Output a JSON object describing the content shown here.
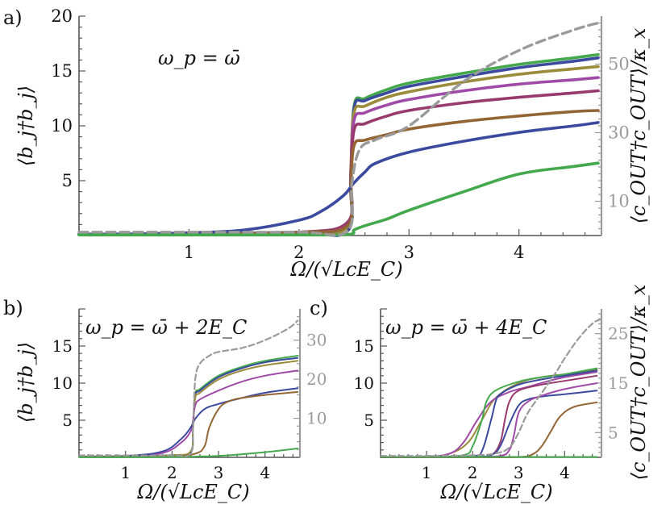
{
  "colors": {
    "green": "#44a84c",
    "blue": "#3b4a9e",
    "olive": "#9a8c3a",
    "purple": "#a04aa8",
    "magenta": "#993a6e",
    "brown": "#936535",
    "gray": "#9a9a9a"
  },
  "chart_data": [
    {
      "panel": "a)",
      "type": "line",
      "annotation": "ω_p = ω̄",
      "xlabel": "Ω/(√LcE_C)",
      "ylabel": "⟨b_j†b_j⟩",
      "ylabel_right": "⟨c_OUT†c_OUT⟩/κ_x",
      "xlim": [
        0,
        4.75
      ],
      "ylim": [
        0,
        20
      ],
      "ylim_right": [
        0,
        64
      ],
      "xticks": [
        "1",
        "2",
        "3",
        "4"
      ],
      "xtick_values": [
        1,
        2,
        3,
        4
      ],
      "yticks": [
        "5",
        "10",
        "15",
        "20"
      ],
      "ytick_values": [
        5,
        10,
        15,
        20
      ],
      "yticks_right": [
        "10",
        "30",
        "50"
      ],
      "ytick_values_right": [
        10,
        30,
        50
      ],
      "series": [
        {
          "name": "green-top",
          "color": "green",
          "x": [
            0,
            1,
            2,
            2.44,
            2.47,
            2.5,
            2.6,
            2.8,
            3.0,
            3.5,
            4.0,
            4.5,
            4.72
          ],
          "y": [
            0.1,
            0.15,
            0.3,
            0.4,
            5,
            11.8,
            12.5,
            13.3,
            13.9,
            14.8,
            15.6,
            16.2,
            16.5
          ]
        },
        {
          "name": "blue-top",
          "color": "blue",
          "x": [
            0,
            1,
            2,
            2.44,
            2.47,
            2.5,
            2.6,
            2.8,
            3.0,
            3.5,
            4.0,
            4.5,
            4.72
          ],
          "y": [
            0.1,
            0.15,
            0.3,
            0.4,
            5,
            11.6,
            12.3,
            13.0,
            13.6,
            14.5,
            15.3,
            15.9,
            16.2
          ]
        },
        {
          "name": "olive",
          "color": "olive",
          "x": [
            0,
            1,
            2,
            2.44,
            2.47,
            2.5,
            2.6,
            2.8,
            3.0,
            3.5,
            4.0,
            4.5,
            4.72
          ],
          "y": [
            0.1,
            0.15,
            0.3,
            0.8,
            6,
            11.2,
            11.8,
            12.6,
            13.1,
            14.0,
            14.7,
            15.2,
            15.4
          ]
        },
        {
          "name": "purple",
          "color": "purple",
          "x": [
            0,
            1,
            2,
            2.44,
            2.47,
            2.5,
            2.6,
            2.8,
            3.0,
            3.5,
            4.0,
            4.5,
            4.72
          ],
          "y": [
            0.1,
            0.15,
            0.3,
            1.0,
            5.5,
            10.5,
            11.2,
            11.9,
            12.4,
            13.2,
            13.8,
            14.2,
            14.4
          ]
        },
        {
          "name": "magenta",
          "color": "magenta",
          "x": [
            0,
            1,
            2,
            2.44,
            2.47,
            2.5,
            2.6,
            2.8,
            3.0,
            3.5,
            4.0,
            4.5,
            4.72
          ],
          "y": [
            0.1,
            0.15,
            0.3,
            1.2,
            5,
            9.6,
            10.2,
            10.9,
            11.4,
            12.1,
            12.6,
            13.0,
            13.2
          ]
        },
        {
          "name": "brown",
          "color": "brown",
          "x": [
            0,
            1,
            2,
            2.44,
            2.47,
            2.5,
            2.6,
            2.8,
            3.0,
            3.5,
            4.0,
            4.5,
            4.72
          ],
          "y": [
            0.1,
            0.15,
            0.3,
            0.9,
            4.5,
            8.2,
            8.7,
            9.2,
            9.7,
            10.4,
            10.9,
            11.3,
            11.4
          ]
        },
        {
          "name": "blue-low",
          "color": "blue",
          "x": [
            0,
            0.5,
            1,
            1.5,
            2,
            2.2,
            2.4,
            2.5,
            2.6,
            2.7,
            3.0,
            3.5,
            4.0,
            4.5,
            4.72
          ],
          "y": [
            0.1,
            0.15,
            0.25,
            0.5,
            1.4,
            2.2,
            3.6,
            4.8,
            5.8,
            6.6,
            7.6,
            8.6,
            9.4,
            10.0,
            10.3
          ]
        },
        {
          "name": "green-low",
          "color": "green",
          "x": [
            0,
            1,
            2,
            2.45,
            2.5,
            2.6,
            2.8,
            3.0,
            3.5,
            4.0,
            4.5,
            4.72
          ],
          "y": [
            0.05,
            0.05,
            0.05,
            0.1,
            0.5,
            0.9,
            1.5,
            2.3,
            4.0,
            5.6,
            6.3,
            6.6
          ]
        },
        {
          "name": "output-dashed",
          "color": "gray",
          "dashed": true,
          "axis": "right",
          "x": [
            0,
            1,
            2,
            2.44,
            2.48,
            2.55,
            2.7,
            3.0,
            3.5,
            4.0,
            4.5,
            4.72
          ],
          "y": [
            1,
            1,
            1,
            1.3,
            15,
            25,
            28,
            32,
            45,
            54,
            60,
            62
          ]
        }
      ]
    },
    {
      "panel": "b)",
      "type": "line",
      "annotation": "ω_p = ω̄ + 2E_C",
      "xlabel": "Ω/(√LcE_C)",
      "ylabel": "⟨b_j†b_j⟩",
      "xlim": [
        0,
        4.75
      ],
      "ylim": [
        0,
        20
      ],
      "ylim_right": [
        0,
        38
      ],
      "xticks": [
        "1",
        "2",
        "3",
        "4"
      ],
      "xtick_values": [
        1,
        2,
        3,
        4
      ],
      "yticks": [
        "5",
        "10",
        "15"
      ],
      "ytick_values": [
        5,
        10,
        15
      ],
      "yticks_right": [
        "10",
        "20",
        "30"
      ],
      "ytick_values_right": [
        10,
        20,
        30
      ],
      "series": [
        {
          "name": "green-top",
          "color": "green",
          "x": [
            0,
            1,
            2,
            2.4,
            2.45,
            2.5,
            2.6,
            3.0,
            3.5,
            4.0,
            4.7
          ],
          "y": [
            0.1,
            0.1,
            0.3,
            0.6,
            4,
            8.5,
            9.2,
            11.0,
            12.2,
            13.0,
            13.7
          ]
        },
        {
          "name": "blue-top",
          "color": "blue",
          "x": [
            0,
            1,
            2,
            2.4,
            2.45,
            2.5,
            2.6,
            3.0,
            3.5,
            4.0,
            4.7
          ],
          "y": [
            0.1,
            0.1,
            0.3,
            0.6,
            4,
            8.3,
            9.0,
            10.8,
            12.0,
            12.8,
            13.4
          ]
        },
        {
          "name": "olive",
          "color": "olive",
          "x": [
            0,
            1,
            2,
            2.4,
            2.45,
            2.5,
            2.6,
            3.0,
            3.5,
            4.0,
            4.7
          ],
          "y": [
            0.1,
            0.1,
            0.3,
            0.8,
            4,
            8.0,
            8.7,
            10.5,
            11.7,
            12.4,
            13.0
          ]
        },
        {
          "name": "purple",
          "color": "purple",
          "x": [
            0,
            1,
            1.8,
            2.2,
            2.4,
            2.45,
            2.5,
            2.6,
            3.0,
            3.5,
            4.0,
            4.7
          ],
          "y": [
            0.1,
            0.15,
            0.6,
            2.0,
            3.5,
            5,
            7.0,
            7.8,
            9.0,
            10.2,
            11.0,
            11.7
          ]
        },
        {
          "name": "blue-low",
          "color": "blue",
          "x": [
            0,
            1,
            1.8,
            2.2,
            2.4,
            2.5,
            2.7,
            3.0,
            3.5,
            4.0,
            4.7
          ],
          "y": [
            0.1,
            0.2,
            0.8,
            2.5,
            4.0,
            5.2,
            6.5,
            7.2,
            8.0,
            8.7,
            9.3
          ]
        },
        {
          "name": "brown",
          "color": "brown",
          "x": [
            0,
            1,
            2,
            2.5,
            2.7,
            2.8,
            3.0,
            3.2,
            3.5,
            4.0,
            4.7
          ],
          "y": [
            0.05,
            0.05,
            0.1,
            0.5,
            1.5,
            4.0,
            6.5,
            7.5,
            8.0,
            8.4,
            8.8
          ]
        },
        {
          "name": "green-low",
          "color": "green",
          "x": [
            0,
            1,
            2,
            3,
            4,
            4.7
          ],
          "y": [
            0.02,
            0.02,
            0.05,
            0.2,
            0.7,
            1.2
          ]
        },
        {
          "name": "output-dashed",
          "color": "gray",
          "dashed": true,
          "axis": "right",
          "x": [
            0,
            1,
            2,
            2.4,
            2.45,
            2.5,
            2.6,
            2.8,
            3.0,
            3.5,
            4.0,
            4.5,
            4.7
          ],
          "y": [
            0.5,
            0.5,
            0.5,
            1,
            8,
            20,
            24,
            26,
            27,
            28,
            30,
            33,
            35
          ]
        }
      ]
    },
    {
      "panel": "c)",
      "type": "line",
      "annotation": "ω_p = ω̄ + 4E_C",
      "xlabel": "Ω/(√LcE_C)",
      "ylabel_right": "⟨c_OUT†c_OUT⟩/κ_x",
      "xlim": [
        0,
        4.8
      ],
      "ylim": [
        0,
        20
      ],
      "ylim_right": [
        0,
        30
      ],
      "xticks": [
        "1",
        "2",
        "3",
        "4"
      ],
      "xtick_values": [
        1,
        2,
        3,
        4
      ],
      "yticks": [
        "5",
        "10",
        "15"
      ],
      "ytick_values": [
        5,
        10,
        15
      ],
      "yticks_right": [
        "5",
        "15",
        "25"
      ],
      "ytick_values_right": [
        5,
        15,
        25
      ],
      "series": [
        {
          "name": "olive",
          "color": "olive",
          "x": [
            0,
            1,
            1.5,
            1.9,
            2.2,
            2.5,
            3.0,
            3.5,
            4.0,
            4.7
          ],
          "y": [
            0.05,
            0.1,
            0.5,
            2.0,
            5.0,
            8.0,
            10.0,
            10.8,
            11.2,
            11.8
          ]
        },
        {
          "name": "purple-early",
          "color": "purple",
          "x": [
            0,
            1,
            1.5,
            1.8,
            2.1,
            2.4,
            2.8,
            3.2,
            3.6,
            4.0,
            4.7
          ],
          "y": [
            0.05,
            0.1,
            0.5,
            2.0,
            5.0,
            7.5,
            8.8,
            9.5,
            10.2,
            10.8,
            11.5
          ]
        },
        {
          "name": "green-top",
          "color": "green",
          "x": [
            0,
            1,
            1.8,
            2.0,
            2.2,
            2.3,
            2.5,
            3.0,
            3.5,
            4.0,
            4.7
          ],
          "y": [
            0.02,
            0.05,
            0.3,
            1.5,
            5,
            7.5,
            9.0,
            10.2,
            10.8,
            11.2,
            12.0
          ]
        },
        {
          "name": "blue-top",
          "color": "blue",
          "x": [
            0,
            1,
            2,
            2.2,
            2.4,
            2.5,
            2.6,
            3.0,
            3.5,
            4.0,
            4.7
          ],
          "y": [
            0.02,
            0.05,
            0.2,
            0.8,
            5,
            7.5,
            8.5,
            9.8,
            10.5,
            11.0,
            11.7
          ]
        },
        {
          "name": "magenta",
          "color": "magenta",
          "x": [
            0,
            1,
            2,
            2.4,
            2.6,
            2.7,
            2.8,
            3.0,
            3.5,
            4.0,
            4.7
          ],
          "y": [
            0.02,
            0.05,
            0.1,
            0.3,
            2.0,
            5,
            7.5,
            9.0,
            9.8,
            10.3,
            11.0
          ]
        },
        {
          "name": "blue-low",
          "color": "blue",
          "x": [
            0,
            1,
            2,
            2.4,
            2.6,
            2.8,
            3.0,
            3.2,
            3.5,
            4.0,
            4.7
          ],
          "y": [
            0.02,
            0.05,
            0.1,
            0.3,
            1.5,
            4.5,
            7.0,
            7.8,
            8.2,
            8.5,
            9.0
          ]
        },
        {
          "name": "purple-late",
          "color": "purple",
          "x": [
            0,
            1,
            2,
            2.6,
            2.8,
            2.9,
            3.0,
            3.2,
            3.5,
            4.0,
            4.7
          ],
          "y": [
            0.02,
            0.02,
            0.05,
            0.2,
            1.0,
            3.0,
            6.0,
            7.5,
            8.3,
            9.2,
            10.0
          ]
        },
        {
          "name": "brown",
          "color": "brown",
          "x": [
            0,
            1,
            2,
            3,
            3.3,
            3.5,
            3.7,
            3.9,
            4.2,
            4.7
          ],
          "y": [
            0.02,
            0.02,
            0.02,
            0.05,
            0.4,
            1.5,
            3.5,
            5.5,
            6.8,
            7.4
          ]
        },
        {
          "name": "green-low",
          "color": "green",
          "x": [
            0,
            2,
            4,
            4.7
          ],
          "y": [
            0.05,
            0.05,
            0.05,
            0.05
          ]
        },
        {
          "name": "output-dashed",
          "color": "gray",
          "dashed": true,
          "axis": "right",
          "x": [
            0,
            1,
            2,
            2.5,
            2.8,
            3.0,
            3.2,
            3.5,
            3.8,
            4.0,
            4.3,
            4.6,
            4.8
          ],
          "y": [
            0.3,
            0.3,
            0.4,
            0.8,
            2,
            5,
            9,
            13,
            17,
            20,
            24,
            27,
            28
          ]
        }
      ]
    }
  ]
}
